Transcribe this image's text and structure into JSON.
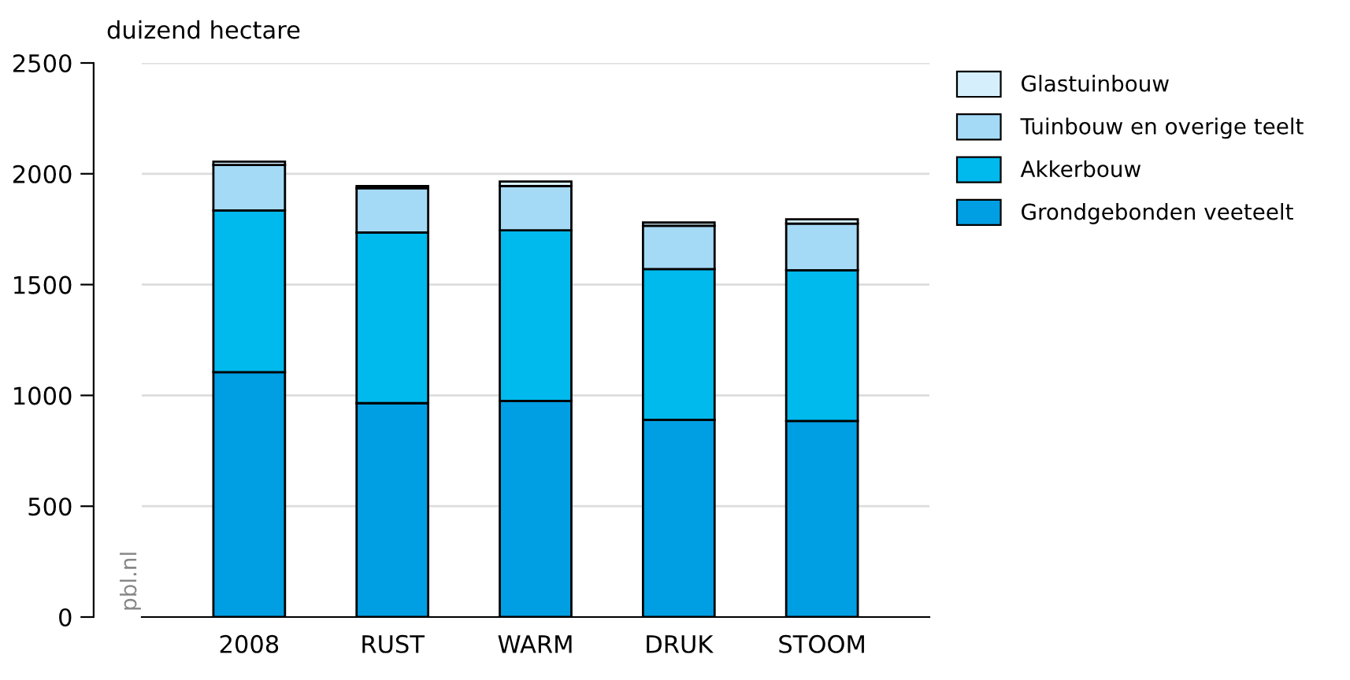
{
  "chart_data": {
    "type": "bar",
    "stacked": true,
    "ylabel": "duizend hectare",
    "categories": [
      "2008",
      "RUST",
      "WARM",
      "DRUK",
      "STOOM"
    ],
    "series": [
      {
        "name": "Grondgebonden veeteelt",
        "color": "#009fe3",
        "values": [
          1105,
          965,
          975,
          890,
          885
        ]
      },
      {
        "name": "Akkerbouw",
        "color": "#00b9ed",
        "values": [
          730,
          770,
          770,
          680,
          680
        ]
      },
      {
        "name": "Tuinbouw en overige teelt",
        "color": "#a5daf7",
        "values": [
          205,
          200,
          200,
          195,
          210
        ]
      },
      {
        "name": "Glastuinbouw",
        "color": "#d5effc",
        "values": [
          15,
          10,
          20,
          15,
          20
        ]
      }
    ],
    "ylim": [
      0,
      2500
    ],
    "yticks": [
      0,
      500,
      1000,
      1500,
      2000,
      2500
    ],
    "grid": "y",
    "legend": "top right",
    "annotations": [
      "pbl.nl"
    ]
  }
}
